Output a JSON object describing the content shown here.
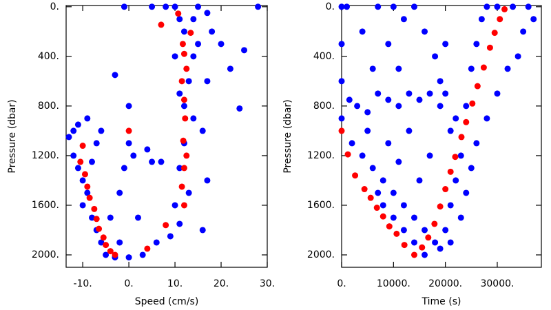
{
  "chart_data": [
    {
      "type": "scatter",
      "xlabel": "Speed (cm/s)",
      "ylabel": "Pressure (dbar)",
      "xlim": [
        -13.6,
        30
      ],
      "ylim": [
        2100,
        -10
      ],
      "xticks": [
        {
          "value": -10,
          "label": "-10."
        },
        {
          "value": 0,
          "label": "0."
        },
        {
          "value": 10,
          "label": "10."
        },
        {
          "value": 20,
          "label": "20."
        },
        {
          "value": 30,
          "label": "30."
        }
      ],
      "yticks": [
        {
          "value": 0,
          "label": "0."
        },
        {
          "value": 400,
          "label": "400."
        },
        {
          "value": 800,
          "label": "800."
        },
        {
          "value": 1200,
          "label": "1200."
        },
        {
          "value": 1600,
          "label": "1600."
        },
        {
          "value": 2000,
          "label": "2000."
        }
      ],
      "series": [
        {
          "color": "#0000ff",
          "x": [
            -12,
            -11,
            -13,
            -12,
            -11,
            -10,
            -9,
            -10,
            -8,
            -7,
            -6,
            -5,
            -3,
            0,
            3,
            6,
            9,
            11,
            10,
            13,
            11,
            12,
            14,
            12,
            11,
            13,
            14,
            15,
            12,
            14,
            15,
            10,
            -1,
            5,
            8,
            18,
            20,
            25,
            28,
            22,
            24,
            17,
            0,
            0,
            -1,
            1,
            -3,
            -2,
            4,
            5,
            2,
            7,
            16,
            17,
            16,
            -7,
            -8,
            -9,
            -6,
            -4,
            -2,
            10,
            11,
            17
          ],
          "values": [
            1000,
            950,
            1050,
            1200,
            1300,
            1400,
            1500,
            1600,
            1700,
            1800,
            1900,
            2000,
            2020,
            2020,
            2000,
            1900,
            1850,
            1750,
            1600,
            1500,
            1300,
            1100,
            900,
            800,
            700,
            600,
            400,
            300,
            200,
            100,
            0,
            0,
            0,
            0,
            0,
            200,
            300,
            350,
            0,
            500,
            820,
            600,
            800,
            1100,
            1300,
            1200,
            550,
            1500,
            1150,
            1250,
            1700,
            1250,
            1000,
            1400,
            1800,
            1100,
            1250,
            900,
            1000,
            1700,
            1900,
            400,
            100,
            50
          ]
        },
        {
          "color": "#ff0000",
          "x": [
            -10,
            -10.5,
            -9.5,
            -9,
            -8.5,
            -7.5,
            -7,
            -6.5,
            -5.5,
            -5,
            -4,
            -3,
            0,
            4,
            8,
            12,
            11.5,
            12,
            12.5,
            11.8,
            12.2,
            12,
            11.5,
            12.5,
            12,
            11.7,
            10.7,
            13.4,
            7
          ],
          "values": [
            1120,
            1250,
            1350,
            1450,
            1540,
            1630,
            1710,
            1790,
            1860,
            1920,
            1970,
            2000,
            1000,
            1950,
            1760,
            1600,
            1450,
            1300,
            1200,
            1080,
            900,
            750,
            600,
            500,
            380,
            300,
            55,
            210,
            145
          ]
        }
      ]
    },
    {
      "type": "scatter",
      "xlabel": "Time (s)",
      "ylabel": "Pressure (dbar)",
      "xlim": [
        0,
        38500
      ],
      "ylim": [
        2100,
        -10
      ],
      "xticks": [
        {
          "value": 0,
          "label": "0."
        },
        {
          "value": 10000,
          "label": "10000."
        },
        {
          "value": 20000,
          "label": "20000."
        },
        {
          "value": 30000,
          "label": "30000."
        }
      ],
      "yticks": [
        {
          "value": 0,
          "label": "0."
        },
        {
          "value": 400,
          "label": "400."
        },
        {
          "value": 800,
          "label": "800."
        },
        {
          "value": 1200,
          "label": "1200."
        },
        {
          "value": 1600,
          "label": "1600."
        },
        {
          "value": 2000,
          "label": "2000."
        }
      ],
      "series": [
        {
          "color": "#0000ff",
          "x": [
            0,
            1000,
            0,
            0,
            0,
            1500,
            3000,
            5000,
            7000,
            9000,
            11000,
            13000,
            15000,
            17000,
            19000,
            20000,
            2000,
            4000,
            6000,
            8000,
            10000,
            12000,
            14000,
            16000,
            18000,
            19000,
            9000,
            11000,
            13000,
            15000,
            17000,
            5000,
            7000,
            8000,
            10000,
            12000,
            14000,
            16000,
            20000,
            21000,
            22000,
            23000,
            22000,
            21000,
            24000,
            25000,
            26000,
            27000,
            28000,
            30000,
            33000,
            36000,
            37000,
            35000,
            34000,
            32000,
            30000,
            28000,
            26000,
            25000,
            24000,
            23000,
            21000,
            7000,
            10000,
            12000,
            14000,
            16000,
            9000,
            11000,
            6000,
            4000,
            18000,
            19000,
            20000
          ],
          "values": [
            0,
            0,
            300,
            600,
            900,
            750,
            800,
            850,
            700,
            750,
            800,
            700,
            750,
            700,
            800,
            700,
            1100,
            1200,
            1300,
            1400,
            1500,
            1600,
            1700,
            1800,
            1900,
            1950,
            1100,
            1250,
            1000,
            1400,
            1200,
            1000,
            1500,
            1600,
            1700,
            1800,
            1900,
            2000,
            1800,
            1600,
            1400,
            1200,
            900,
            1000,
            800,
            500,
            300,
            100,
            0,
            0,
            0,
            0,
            100,
            200,
            400,
            500,
            700,
            900,
            1100,
            1300,
            1500,
            1700,
            1900,
            0,
            0,
            100,
            0,
            200,
            300,
            500,
            500,
            200,
            400,
            600,
            300
          ]
        },
        {
          "color": "#ff0000",
          "x": [
            0,
            1200,
            2600,
            4400,
            5600,
            6800,
            8000,
            9200,
            10600,
            12100,
            14000,
            15500,
            16700,
            17900,
            19000,
            20000,
            21000,
            21900,
            23100,
            24000,
            25200,
            26200,
            27400,
            28600,
            29500,
            30500,
            31400
          ],
          "values": [
            1000,
            1190,
            1360,
            1470,
            1540,
            1620,
            1690,
            1770,
            1830,
            1920,
            2000,
            1940,
            1860,
            1750,
            1610,
            1470,
            1330,
            1210,
            1050,
            930,
            780,
            640,
            490,
            330,
            210,
            100,
            20
          ]
        }
      ]
    }
  ]
}
